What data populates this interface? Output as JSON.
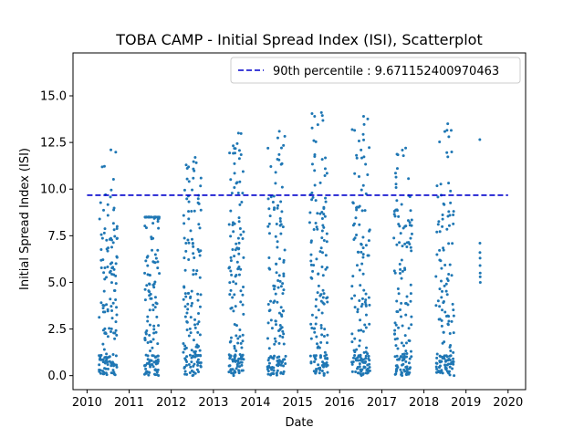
{
  "chart_data": {
    "type": "scatter",
    "title": "TOBA CAMP - Initial Spread Index (ISI), Scatterplot",
    "xlabel": "Date",
    "ylabel": "Initial Spread Index (ISI)",
    "xlim": [
      "2009-09-01",
      "2020-06-01"
    ],
    "ylim": [
      -0.75,
      17.3
    ],
    "x_ticks": [
      "2010",
      "2011",
      "2012",
      "2013",
      "2014",
      "2015",
      "2016",
      "2017",
      "2018",
      "2019",
      "2020"
    ],
    "y_ticks": [
      "0.0",
      "2.5",
      "5.0",
      "7.5",
      "10.0",
      "12.5",
      "15.0"
    ],
    "y_tick_values": [
      0,
      2.5,
      5,
      7.5,
      10,
      12.5,
      15
    ],
    "marker_color": "#1f77b4",
    "reference_line": {
      "label": "90th percentile : 9.671152400970463",
      "value": 9.671152400970463,
      "color": "#0000cc",
      "style": "dashed"
    },
    "legend_location": "top-right",
    "seasons": [
      {
        "year": 2010,
        "start_month": 4,
        "end_month": 9,
        "max_isi": 12.1
      },
      {
        "year": 2011,
        "start_month": 5,
        "end_month": 9,
        "max_isi": 8.5
      },
      {
        "year": 2012,
        "start_month": 4,
        "end_month": 9,
        "max_isi": 11.7
      },
      {
        "year": 2013,
        "start_month": 5,
        "end_month": 9,
        "max_isi": 13.0
      },
      {
        "year": 2014,
        "start_month": 4,
        "end_month": 9,
        "max_isi": 13.1
      },
      {
        "year": 2015,
        "start_month": 4,
        "end_month": 9,
        "max_isi": 14.1
      },
      {
        "year": 2016,
        "start_month": 4,
        "end_month": 9,
        "max_isi": 13.9
      },
      {
        "year": 2017,
        "start_month": 4,
        "end_month": 9,
        "max_isi": 12.2
      },
      {
        "year": 2018,
        "start_month": 4,
        "end_month": 9,
        "max_isi": 13.5
      }
    ],
    "sparse_points": [
      {
        "x": "2019-05-01",
        "y": 12.65
      },
      {
        "x": "2019-05-02",
        "y": 7.1
      },
      {
        "x": "2019-05-02",
        "y": 6.6
      },
      {
        "x": "2019-05-03",
        "y": 6.3
      },
      {
        "x": "2019-05-03",
        "y": 5.9
      },
      {
        "x": "2019-05-04",
        "y": 5.5
      },
      {
        "x": "2019-05-04",
        "y": 5.3
      },
      {
        "x": "2019-05-05",
        "y": 5.0
      }
    ]
  }
}
